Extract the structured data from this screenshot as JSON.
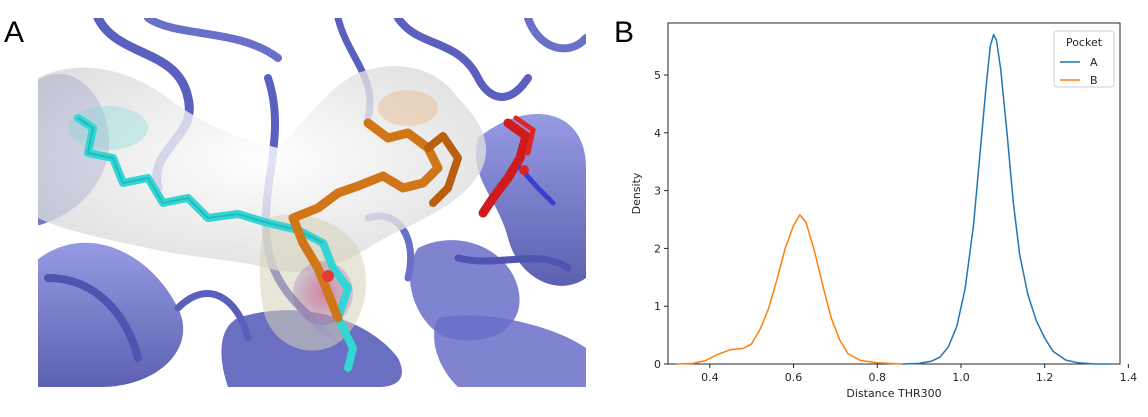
{
  "panels": {
    "left_letter": "A",
    "right_letter": "B"
  },
  "colors": {
    "protein_ribbon": "#6a6fc8",
    "protein_ribbon_dark": "#4f54b0",
    "surface": "#e9e9e9",
    "ligand_cyan": "#32d6d6",
    "ligand_orange": "#cf7416",
    "residue_red": "#d41b1b",
    "series_a": "#1f77b4",
    "series_b": "#ff7f0e"
  },
  "chart_data": {
    "type": "line",
    "title": "",
    "xlabel": "Distance THR300",
    "ylabel": "Density",
    "xlim": [
      0.3,
      1.38
    ],
    "ylim": [
      0,
      5.9
    ],
    "xticks": [
      "0.4",
      "0.6",
      "0.8",
      "1.0",
      "1.2",
      "1.4"
    ],
    "xtick_values": [
      0.4,
      0.6,
      0.8,
      1.0,
      1.2,
      1.4
    ],
    "yticks": [
      "0",
      "1",
      "2",
      "3",
      "4",
      "5"
    ],
    "ytick_values": [
      0,
      1,
      2,
      3,
      4,
      5
    ],
    "grid": false,
    "legend": {
      "title": "Pocket",
      "placement": "top-right",
      "entries": [
        "A",
        "B"
      ]
    },
    "series": [
      {
        "name": "A",
        "color": "#1f77b4",
        "points": [
          [
            0.86,
            0.0
          ],
          [
            0.9,
            0.01
          ],
          [
            0.93,
            0.05
          ],
          [
            0.95,
            0.12
          ],
          [
            0.97,
            0.3
          ],
          [
            0.99,
            0.65
          ],
          [
            1.01,
            1.3
          ],
          [
            1.03,
            2.4
          ],
          [
            1.045,
            3.6
          ],
          [
            1.06,
            4.8
          ],
          [
            1.07,
            5.5
          ],
          [
            1.078,
            5.7
          ],
          [
            1.085,
            5.6
          ],
          [
            1.095,
            5.1
          ],
          [
            1.11,
            4.0
          ],
          [
            1.125,
            2.8
          ],
          [
            1.14,
            1.9
          ],
          [
            1.16,
            1.2
          ],
          [
            1.18,
            0.75
          ],
          [
            1.2,
            0.45
          ],
          [
            1.22,
            0.22
          ],
          [
            1.25,
            0.07
          ],
          [
            1.28,
            0.02
          ],
          [
            1.32,
            0.0
          ],
          [
            1.36,
            0.0
          ]
        ]
      },
      {
        "name": "B",
        "color": "#ff7f0e",
        "points": [
          [
            0.32,
            0.0
          ],
          [
            0.36,
            0.01
          ],
          [
            0.39,
            0.06
          ],
          [
            0.42,
            0.17
          ],
          [
            0.45,
            0.25
          ],
          [
            0.48,
            0.27
          ],
          [
            0.5,
            0.35
          ],
          [
            0.52,
            0.6
          ],
          [
            0.54,
            0.95
          ],
          [
            0.56,
            1.45
          ],
          [
            0.58,
            2.0
          ],
          [
            0.6,
            2.4
          ],
          [
            0.615,
            2.58
          ],
          [
            0.63,
            2.45
          ],
          [
            0.65,
            1.95
          ],
          [
            0.67,
            1.35
          ],
          [
            0.69,
            0.8
          ],
          [
            0.71,
            0.42
          ],
          [
            0.73,
            0.18
          ],
          [
            0.76,
            0.06
          ],
          [
            0.8,
            0.02
          ],
          [
            0.86,
            0.0
          ]
        ]
      }
    ]
  }
}
